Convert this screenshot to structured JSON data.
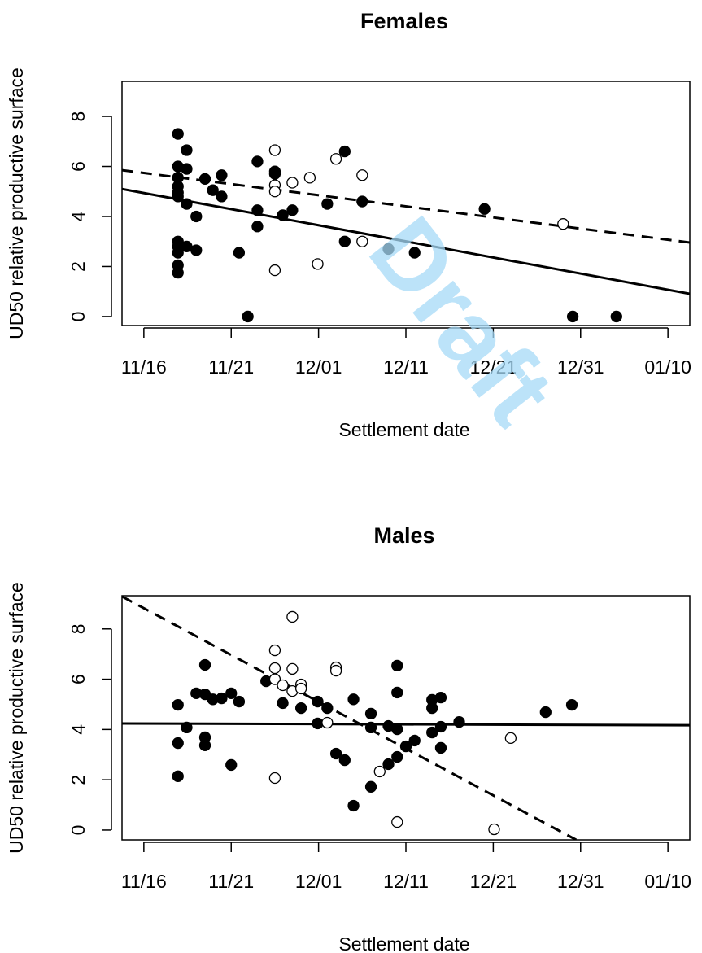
{
  "watermark": "Draft",
  "chart_data": [
    {
      "type": "scatter",
      "title": "Females",
      "x_label": "Settlement date",
      "y_label": "UD50 relative productive surface",
      "xlim": [
        -2.5,
        62.5
      ],
      "ylim": [
        -0.36,
        9.4
      ],
      "xticks": [
        {
          "value": 0,
          "label": "11/16"
        },
        {
          "value": 10,
          "label": "11/21"
        },
        {
          "value": 20,
          "label": "12/01"
        },
        {
          "value": 30,
          "label": "12/11"
        },
        {
          "value": 40,
          "label": "12/21"
        },
        {
          "value": 50,
          "label": "12/31"
        },
        {
          "value": 60,
          "label": "01/10"
        }
      ],
      "yticks": [
        0,
        2,
        4,
        6,
        8
      ],
      "series": [
        {
          "filled": true,
          "x": [
            3.9,
            3.9,
            3.9,
            3.9,
            3.9,
            3.9,
            3.9,
            3.9,
            3.9,
            3.9,
            3.9,
            4.9,
            4.9,
            4.9,
            4.9,
            6.0,
            6.0,
            7.0,
            7.9,
            8.9,
            8.9,
            10.9,
            11.9,
            13.0,
            13.0,
            13.0,
            15.0,
            15.0,
            15.9,
            17.0,
            21.0,
            23.0,
            23.0,
            25.0,
            28.0,
            31.0,
            39.0,
            49.1,
            54.1
          ],
          "values": [
            7.3,
            6.0,
            5.55,
            5.2,
            4.95,
            4.8,
            3.0,
            2.8,
            2.55,
            2.05,
            1.75,
            6.65,
            5.9,
            4.5,
            2.8,
            4.0,
            2.65,
            5.5,
            5.05,
            5.65,
            4.8,
            2.55,
            0,
            6.2,
            4.25,
            3.6,
            5.8,
            5.7,
            4.05,
            4.25,
            4.5,
            6.6,
            3.0,
            4.6,
            2.7,
            2.55,
            4.3,
            0,
            0
          ]
        },
        {
          "filled": false,
          "x": [
            15.0,
            15.0,
            15.0,
            15.0,
            17.0,
            19.0,
            22.0,
            19.9,
            25.0,
            25.0,
            48.0
          ],
          "values": [
            6.65,
            5.25,
            5.0,
            1.85,
            5.35,
            5.55,
            6.3,
            2.1,
            5.65,
            3.0,
            3.7
          ]
        }
      ],
      "lines": [
        {
          "dashed": false,
          "x": [
            -2.5,
            62.5
          ],
          "values": [
            5.1,
            0.91
          ]
        },
        {
          "dashed": true,
          "x": [
            -2.5,
            62.5
          ],
          "values": [
            5.85,
            2.96
          ]
        }
      ]
    },
    {
      "type": "scatter",
      "title": "Males",
      "x_label": "Settlement date",
      "y_label": "UD50 relative productive surface",
      "xlim": [
        -2.5,
        62.5
      ],
      "ylim": [
        -0.39,
        9.32
      ],
      "xticks": [
        {
          "value": 0,
          "label": "11/16"
        },
        {
          "value": 10,
          "label": "11/21"
        },
        {
          "value": 20,
          "label": "12/01"
        },
        {
          "value": 30,
          "label": "12/11"
        },
        {
          "value": 40,
          "label": "12/21"
        },
        {
          "value": 50,
          "label": "12/31"
        },
        {
          "value": 60,
          "label": "01/10"
        }
      ],
      "yticks": [
        0,
        2,
        4,
        6,
        8
      ],
      "series": [
        {
          "filled": true,
          "x": [
            3.9,
            3.9,
            3.9,
            4.9,
            6.0,
            7.0,
            7.0,
            7.0,
            7.0,
            7.9,
            8.9,
            10.0,
            10.0,
            10.9,
            14.0,
            15.9,
            18.0,
            19.9,
            19.9,
            21.0,
            22.0,
            23.0,
            24.0,
            24.0,
            26.0,
            26.0,
            26.0,
            28.0,
            28.0,
            29.0,
            29.0,
            29.0,
            29.0,
            30.0,
            31.0,
            33.0,
            33.0,
            33.0,
            34.0,
            34.0,
            34.0,
            36.1,
            46.0,
            49.0
          ],
          "values": [
            4.98,
            3.46,
            2.14,
            4.08,
            5.44,
            6.57,
            5.4,
            3.69,
            3.37,
            5.2,
            5.24,
            5.44,
            2.59,
            5.11,
            5.92,
            5.05,
            4.85,
            5.11,
            4.24,
            4.85,
            3.04,
            2.78,
            5.2,
            0.97,
            4.63,
            4.08,
            1.72,
            4.14,
            2.62,
            4.01,
            5.47,
            6.54,
            2.91,
            3.33,
            3.56,
            5.18,
            4.85,
            3.88,
            5.27,
            4.11,
            3.27,
            4.3,
            4.69,
            4.98
          ]
        },
        {
          "filled": false,
          "x": [
            15.0,
            15.0,
            15.0,
            15.0,
            15.9,
            17.0,
            17.0,
            17.0,
            18.0,
            18.0,
            21.0,
            22.0,
            22.0,
            27.0,
            29.0,
            40.1,
            42.0
          ],
          "values": [
            7.15,
            6.44,
            6.0,
            2.07,
            5.76,
            8.48,
            6.41,
            5.53,
            5.79,
            5.63,
            4.27,
            6.47,
            6.34,
            2.33,
            0.32,
            0.03,
            3.66
          ]
        }
      ],
      "lines": [
        {
          "dashed": false,
          "x": [
            -2.5,
            62.5
          ],
          "values": [
            4.24,
            4.17
          ]
        },
        {
          "dashed": true,
          "x": [
            -2.5,
            49.5
          ],
          "values": [
            9.29,
            -0.39
          ]
        }
      ]
    }
  ]
}
